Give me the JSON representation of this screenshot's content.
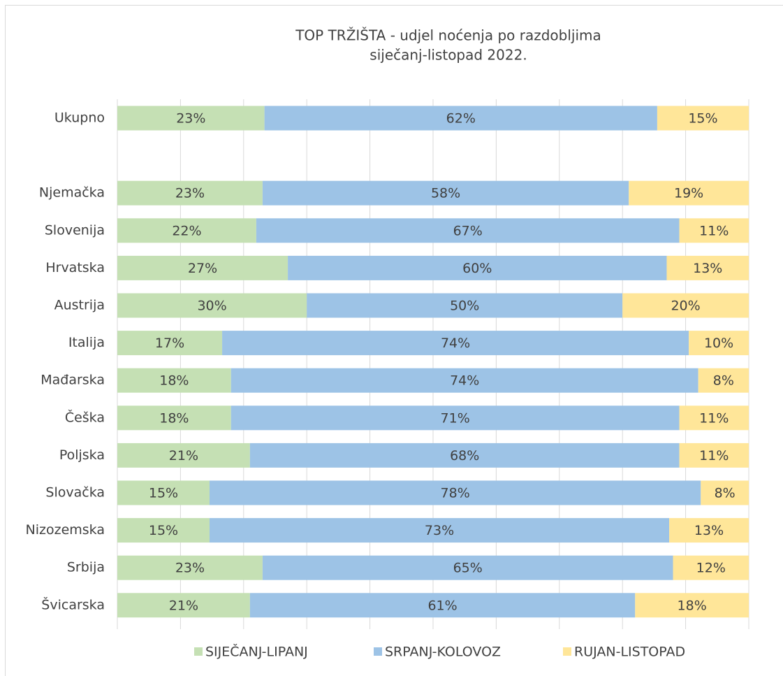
{
  "chart_data": {
    "type": "stacked-bar-horizontal",
    "title": [
      "TOP TRŽIŠTA - udjel noćenja po razdobljima",
      "siječanj-listopad 2022."
    ],
    "categories": [
      "Ukupno",
      null,
      "Njemačka",
      "Slovenija",
      "Hrvatska",
      "Austrija",
      "Italija",
      "Mađarska",
      "Češka",
      "Poljska",
      "Slovačka",
      "Nizozemska",
      "Srbija",
      "Švicarska"
    ],
    "series": [
      {
        "name": "SIJEČANJ-LIPANJ",
        "color": "#c5e0b4",
        "values": [
          23.3,
          null,
          23,
          22,
          27,
          30,
          16.6,
          18,
          18,
          21,
          14.6,
          14.6,
          23,
          21
        ],
        "value_labels": [
          "23%",
          null,
          "23%",
          "22%",
          "27%",
          "30%",
          "17%",
          "18%",
          "18%",
          "21%",
          "15%",
          "15%",
          "23%",
          "21%"
        ]
      },
      {
        "name": "SRPANJ-KOLOVOZ",
        "color": "#9dc3e6",
        "values": [
          62.2,
          null,
          58,
          67,
          60,
          50,
          73.9,
          74,
          71,
          68,
          77.8,
          72.8,
          65,
          61
        ],
        "value_labels": [
          "62%",
          null,
          "58%",
          "67%",
          "60%",
          "50%",
          "74%",
          "74%",
          "71%",
          "68%",
          "78%",
          "73%",
          "65%",
          "61%"
        ]
      },
      {
        "name": "RUJAN-LISTOPAD",
        "color": "#ffe699",
        "values": [
          14.5,
          null,
          19,
          11,
          13,
          20,
          9.5,
          8,
          11,
          11,
          7.6,
          12.6,
          12,
          18
        ],
        "value_labels": [
          "15%",
          null,
          "19%",
          "11%",
          "13%",
          "20%",
          "10%",
          "8%",
          "11%",
          "11%",
          "8%",
          "13%",
          "12%",
          "18%"
        ]
      }
    ],
    "xlim": [
      0,
      100
    ],
    "xticks": [
      0,
      10,
      20,
      30,
      40,
      50,
      60,
      70,
      80,
      90,
      100
    ],
    "grid": true,
    "legend": "bottom"
  }
}
